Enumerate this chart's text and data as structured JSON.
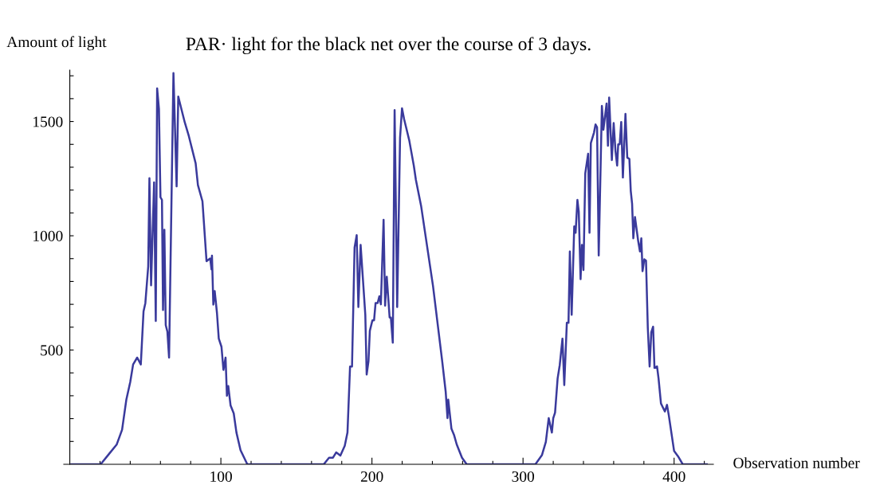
{
  "chart_data": {
    "type": "line",
    "title": "PAR· light for the black net over the course of 3 days.",
    "xlabel": "Observation number",
    "ylabel": "Amount of light",
    "xlim": [
      -4,
      426
    ],
    "ylim": [
      0,
      1725
    ],
    "xticks": [
      {
        "value": 20,
        "label": null
      },
      {
        "value": 40,
        "label": null
      },
      {
        "value": 60,
        "label": null
      },
      {
        "value": 80,
        "label": null
      },
      100,
      {
        "value": 120,
        "label": null
      },
      {
        "value": 140,
        "label": null
      },
      {
        "value": 160,
        "label": null
      },
      {
        "value": 180,
        "label": null
      },
      200,
      {
        "value": 220,
        "label": null
      },
      {
        "value": 240,
        "label": null
      },
      {
        "value": 260,
        "label": null
      },
      {
        "value": 280,
        "label": null
      },
      300,
      {
        "value": 320,
        "label": null
      },
      {
        "value": 340,
        "label": null
      },
      {
        "value": 360,
        "label": null
      },
      {
        "value": 380,
        "label": null
      },
      400,
      {
        "value": 420,
        "label": null
      }
    ],
    "yticks": [
      {
        "value": 100,
        "label": null
      },
      {
        "value": 200,
        "label": null
      },
      {
        "value": 300,
        "label": null
      },
      {
        "value": 400,
        "label": null
      },
      500,
      {
        "value": 600,
        "label": null
      },
      {
        "value": 700,
        "label": null
      },
      {
        "value": 800,
        "label": null
      },
      {
        "value": 900,
        "label": null
      },
      1000,
      {
        "value": 1100,
        "label": null
      },
      {
        "value": 1200,
        "label": null
      },
      {
        "value": 1300,
        "label": null
      },
      {
        "value": 1400,
        "label": null
      },
      1500,
      {
        "value": 1600,
        "label": null
      },
      {
        "value": 1700,
        "label": null
      }
    ],
    "grid": false,
    "marker": "none",
    "line_style": "solid",
    "series": [
      {
        "color": "#3a3a9c",
        "x": [
          1,
          20.4,
          25.8,
          31,
          34.6,
          37.4,
          40,
          41.9,
          44.6,
          47,
          48.8,
          50,
          51.9,
          52.7,
          53.8,
          55.8,
          56.9,
          57.8,
          59,
          60,
          61,
          61.7,
          62.6,
          63.5,
          64.6,
          65.7,
          68.6,
          70.7,
          71.8,
          74.3,
          76.1,
          78.8,
          83.3,
          84.8,
          87.8,
          90.5,
          92.9,
          93.8,
          94.1,
          95,
          95.9,
          97.4,
          98.6,
          100.4,
          101.7,
          103.1,
          104,
          104.9,
          106.4,
          108.5,
          110.3,
          113,
          117.5,
          168.1,
          171.6,
          174.2,
          176.3,
          179.1,
          182,
          183.8,
          185.5,
          186.8,
          188.5,
          189.9,
          191,
          192.5,
          195.6,
          196.5,
          197.7,
          198.6,
          200.3,
          201.4,
          202.4,
          203.8,
          204.9,
          205.9,
          207.7,
          208.7,
          209.8,
          211.7,
          212.5,
          213.8,
          215,
          216.7,
          218.6,
          219.9,
          221.3,
          224.7,
          227.7,
          229.1,
          232.6,
          235.2,
          240.4,
          246.5,
          248.8,
          250,
          250.5,
          252.6,
          254.4,
          256.1,
          259.6,
          262.7,
          308.2,
          312.5,
          315.1,
          317,
          319.1,
          320,
          321.2,
          322.9,
          324.3,
          326.1,
          327.3,
          329,
          330.1,
          331,
          332.2,
          333.9,
          334.8,
          336,
          336.9,
          338.1,
          339,
          340,
          341.2,
          343.1,
          344,
          344.9,
          347,
          348,
          349,
          350.1,
          352.2,
          353.2,
          355.3,
          356.2,
          357,
          358.8,
          360,
          361.2,
          362.3,
          363,
          364,
          365,
          366.1,
          367.8,
          369,
          370.4,
          371.3,
          372.2,
          373,
          374.1,
          376.2,
          377.4,
          378.3,
          379.1,
          380.3,
          381.4,
          382.6,
          383.8,
          384.9,
          386.1,
          387,
          388.7,
          389.7,
          391.3,
          393.9,
          395.3,
          396.5,
          400,
          402.6,
          405.7,
          421.7
        ],
        "values": [
          0,
          0,
          44,
          86,
          151,
          282,
          360,
          437,
          467,
          437,
          669,
          705,
          866,
          1252,
          783,
          1234,
          627,
          1645,
          1556,
          1169,
          1157,
          675,
          1026,
          609,
          580,
          467,
          1712,
          1216,
          1609,
          1543,
          1496,
          1436,
          1317,
          1222,
          1151,
          889,
          901,
          853,
          913,
          699,
          758,
          663,
          550,
          514,
          413,
          467,
          300,
          342,
          258,
          223,
          139,
          62,
          0,
          0,
          29,
          29,
          52,
          38,
          81,
          139,
          428,
          428,
          949,
          1003,
          688,
          960,
          654,
          393,
          451,
          584,
          630,
          630,
          706,
          706,
          735,
          700,
          1070,
          694,
          821,
          642,
          642,
          532,
          1550,
          688,
          1429,
          1558,
          1510,
          1417,
          1307,
          1244,
          1128,
          1012,
          781,
          451,
          318,
          202,
          283,
          156,
          127,
          87,
          29,
          0,
          0,
          40,
          98,
          202,
          139,
          202,
          226,
          376,
          434,
          550,
          347,
          619,
          619,
          931,
          654,
          1041,
          1013,
          1157,
          1105,
          810,
          960,
          850,
          1273,
          1359,
          1013,
          1406,
          1452,
          1487,
          1475,
          914,
          1568,
          1464,
          1579,
          1394,
          1605,
          1331,
          1493,
          1371,
          1307,
          1400,
          1400,
          1498,
          1255,
          1533,
          1342,
          1336,
          1197,
          1140,
          989,
          1082,
          978,
          931,
          989,
          845,
          897,
          891,
          596,
          428,
          578,
          602,
          422,
          428,
          376,
          266,
          231,
          260,
          214,
          58,
          35,
          0,
          0
        ]
      }
    ]
  }
}
